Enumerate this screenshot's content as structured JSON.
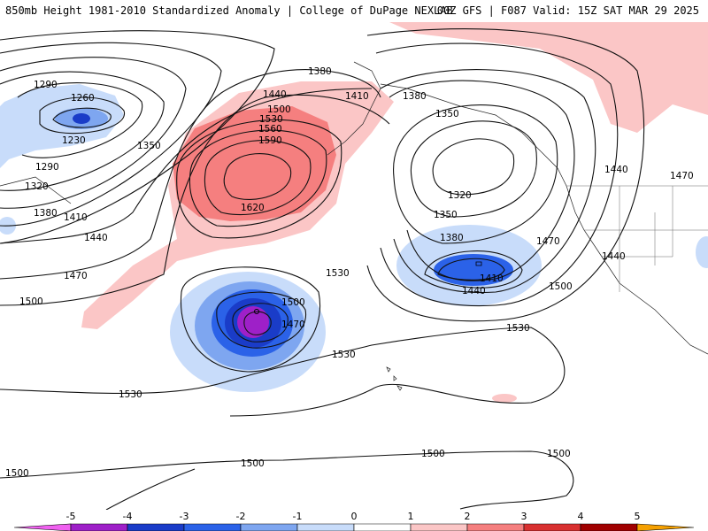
{
  "header": {
    "left_title": "850mb Height 1981-2010 Standardized Anomaly | College of DuPage NEXLAB",
    "right_title": "00Z GFS | F087 Valid: 15Z SAT MAR 29 2025"
  },
  "contour_labels": [
    "1290",
    "1260",
    "1230",
    "1290",
    "1320",
    "1350",
    "1380",
    "1410",
    "1440",
    "1470",
    "1500",
    "1380",
    "1410",
    "1440",
    "1500",
    "1530",
    "1560",
    "1590",
    "1620",
    "1380",
    "1350",
    "1320",
    "1350",
    "1380",
    "1410",
    "1440",
    "1470",
    "1500",
    "1530",
    "1500",
    "1470",
    "1530",
    "1530",
    "1530",
    "1500",
    "1500",
    "1500",
    "1500",
    "1440",
    "1470"
  ],
  "colorbar": {
    "ticks": [
      "-5",
      "-4",
      "-3",
      "-2",
      "-1",
      "0",
      "1",
      "2",
      "3",
      "4",
      "5"
    ],
    "colors": [
      "#f060f0",
      "#9e20c8",
      "#1a3cc8",
      "#2b62e8",
      "#7ea6f0",
      "#c8dcfa",
      "#ffffff",
      "#fbc6c6",
      "#f57f7f",
      "#d83030",
      "#a00000",
      "#f5a000"
    ]
  }
}
